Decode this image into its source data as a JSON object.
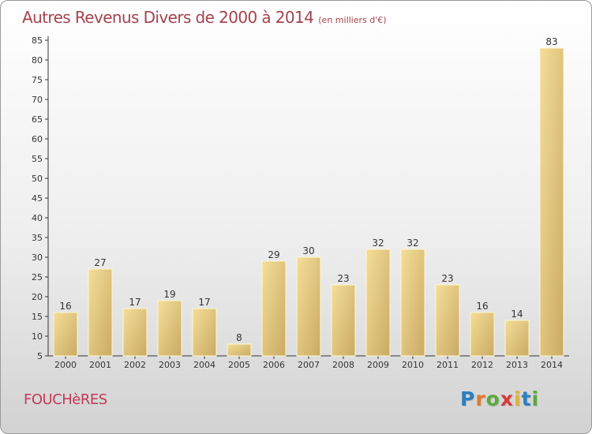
{
  "title": "Autres Revenus Divers de 2000 à 2014",
  "subtitle": "(en milliers d'€)",
  "place": "FOUCHèRES",
  "logo": {
    "letters": [
      "P",
      "r",
      "o",
      "x",
      "i",
      "t",
      "i"
    ],
    "colors": [
      "#2a7fc0",
      "#e07a2e",
      "#5aaa3c",
      "#d63b3b",
      "#e0b42e",
      "#2a7fc0",
      "#5aaa3c"
    ]
  },
  "colors": {
    "title": "#a4434e",
    "bar_light": "#f4dc94",
    "bar_dark": "#c8a962",
    "axis": "#333333"
  },
  "chart_data": {
    "type": "bar",
    "title": "Autres Revenus Divers de 2000 à 2014",
    "subtitle": "(en milliers d'€)",
    "categories": [
      "2000",
      "2001",
      "2002",
      "2003",
      "2004",
      "2005",
      "2006",
      "2007",
      "2008",
      "2009",
      "2010",
      "2011",
      "2012",
      "2013",
      "2014"
    ],
    "values": [
      16,
      27,
      17,
      19,
      17,
      8,
      29,
      30,
      23,
      32,
      32,
      23,
      16,
      14,
      83
    ],
    "ylim": [
      5,
      85
    ],
    "yticks": [
      5,
      10,
      15,
      20,
      25,
      30,
      35,
      40,
      45,
      50,
      55,
      60,
      65,
      70,
      75,
      80,
      85
    ],
    "grid": false,
    "data_labels": true,
    "legend": "none"
  }
}
